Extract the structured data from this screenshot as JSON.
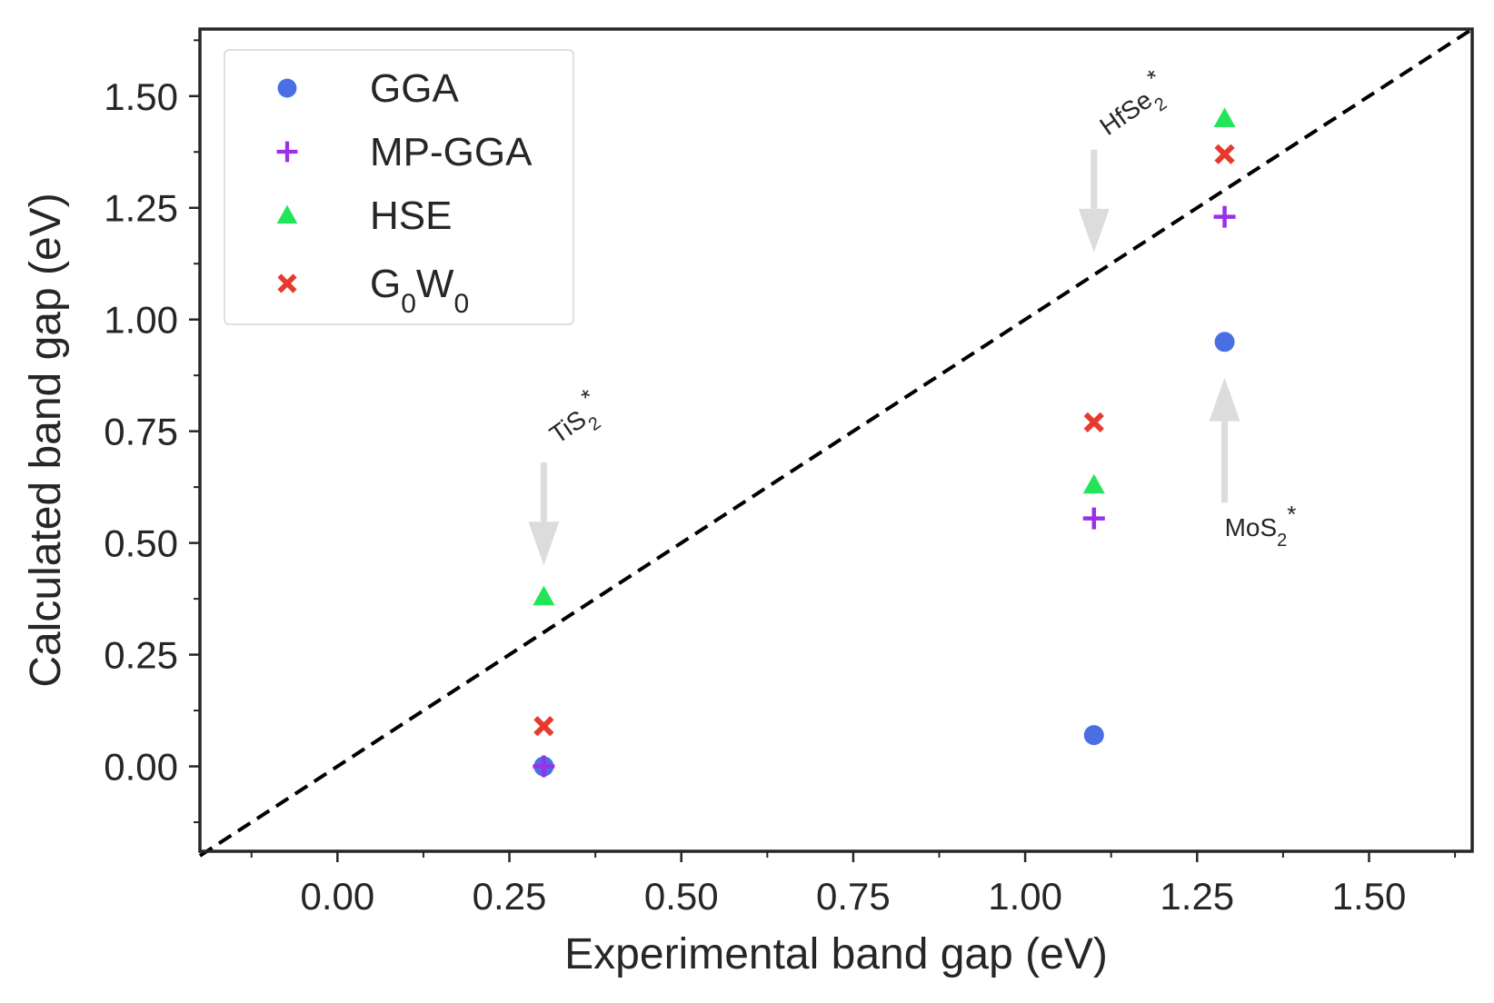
{
  "chart_data": {
    "type": "scatter",
    "title": "",
    "xlabel": "Experimental band gap (eV)",
    "ylabel": "Calculated band gap (eV)",
    "xlim": [
      -0.2,
      1.65
    ],
    "ylim": [
      -0.19,
      1.65
    ],
    "x_ticks": [
      0.0,
      0.25,
      0.5,
      0.75,
      1.0,
      1.25,
      1.5
    ],
    "x_tick_labels": [
      "0.00",
      "0.25",
      "0.50",
      "0.75",
      "1.00",
      "1.25",
      "1.50"
    ],
    "y_ticks": [
      0.0,
      0.25,
      0.5,
      0.75,
      1.0,
      1.25,
      1.5
    ],
    "y_tick_labels": [
      "0.00",
      "0.25",
      "0.50",
      "0.75",
      "1.00",
      "1.25",
      "1.50"
    ],
    "grid": false,
    "legend_position": "top-left",
    "reference_line": {
      "style": "dashed",
      "color": "#000000",
      "from": [
        -0.2,
        -0.2
      ],
      "to": [
        1.65,
        1.65
      ]
    },
    "series": [
      {
        "name": "GGA",
        "marker": "circle",
        "color": "#4a6fe3",
        "points": [
          {
            "x": 0.3,
            "y": 0.0
          },
          {
            "x": 1.1,
            "y": 0.07
          },
          {
            "x": 1.29,
            "y": 0.95
          }
        ]
      },
      {
        "name": "MP-GGA",
        "marker": "plus",
        "color": "#9b30e8",
        "points": [
          {
            "x": 0.3,
            "y": 0.0
          },
          {
            "x": 1.1,
            "y": 0.555
          },
          {
            "x": 1.29,
            "y": 1.23
          }
        ]
      },
      {
        "name": "HSE",
        "marker": "triangle",
        "color": "#22e55a",
        "points": [
          {
            "x": 0.3,
            "y": 0.38
          },
          {
            "x": 1.1,
            "y": 0.63
          },
          {
            "x": 1.29,
            "y": 1.45
          }
        ]
      },
      {
        "name": "G0W0",
        "marker": "x",
        "color": "#e8392e",
        "points": [
          {
            "x": 0.3,
            "y": 0.09
          },
          {
            "x": 1.1,
            "y": 0.77
          },
          {
            "x": 1.29,
            "y": 1.37
          }
        ]
      }
    ],
    "annotations": [
      {
        "id": "tis2",
        "base": "TiS",
        "sub": "2",
        "sup": "*",
        "direction": "down",
        "arrow_x": 0.3,
        "arrow_from_y": 0.68,
        "arrow_to_y": 0.45,
        "text_x": 0.32,
        "text_y": 0.72,
        "rotate": -35
      },
      {
        "id": "hfse2",
        "base": "HfSe",
        "sub": "2",
        "sup": "*",
        "direction": "down",
        "arrow_x": 1.1,
        "arrow_from_y": 1.38,
        "arrow_to_y": 1.15,
        "text_x": 1.12,
        "text_y": 1.41,
        "rotate": -35
      },
      {
        "id": "mos2",
        "base": "MoS",
        "sub": "2",
        "sup": "*",
        "direction": "up",
        "arrow_x": 1.29,
        "arrow_from_y": 0.59,
        "arrow_to_y": 0.87,
        "text_x": 1.29,
        "text_y": 0.515,
        "rotate": 0
      }
    ],
    "legend": {
      "labels": [
        "GGA",
        "MP-GGA",
        "HSE",
        "G0W0"
      ],
      "label_parts": [
        {
          "base": "GGA"
        },
        {
          "base": "MP-GGA"
        },
        {
          "base": "HSE"
        },
        {
          "base": "G",
          "sub1": "0",
          "mid": "W",
          "sub2": "0"
        }
      ]
    }
  }
}
